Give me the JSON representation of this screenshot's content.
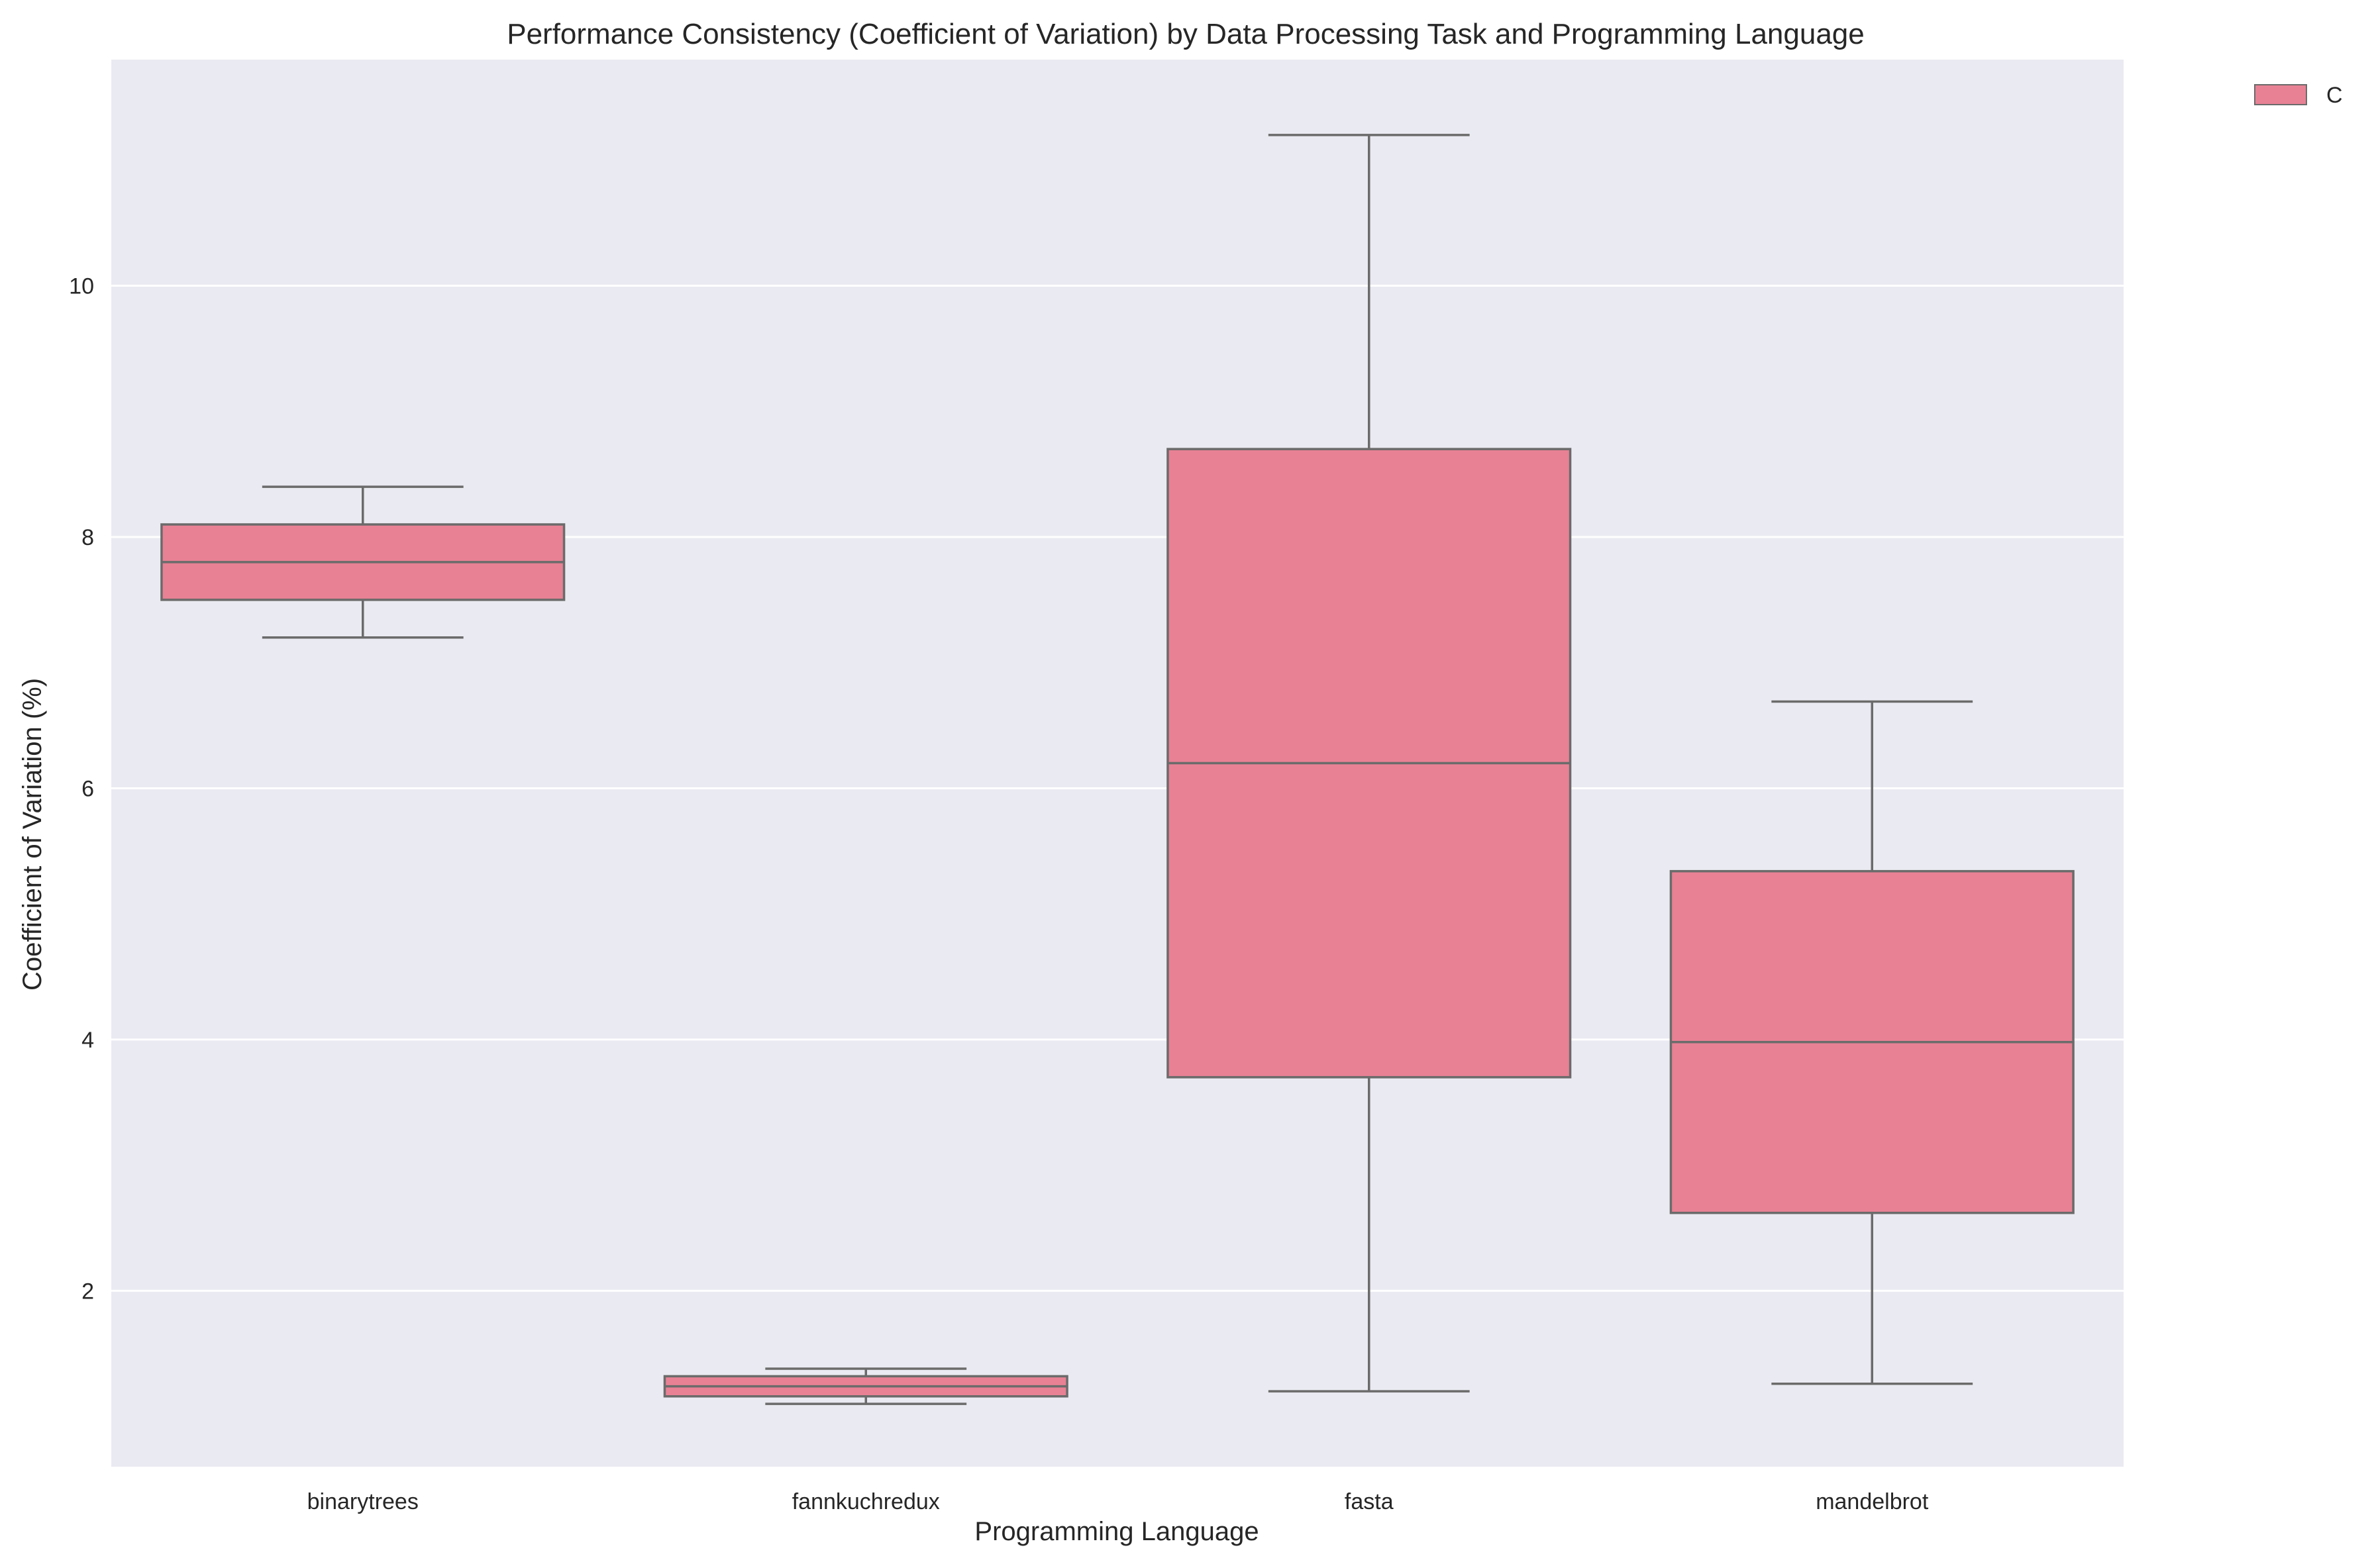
{
  "chart_data": {
    "type": "box",
    "title": "Performance Consistency (Coefficient of Variation) by Data Processing Task and Programming Language",
    "xlabel": "Programming Language",
    "ylabel": "Coefficient of Variation (%)",
    "categories": [
      "binarytrees",
      "fannkuchredux",
      "fasta",
      "mandelbrot"
    ],
    "ylim": [
      0.6,
      11.8
    ],
    "yticks": [
      2,
      4,
      6,
      8,
      10
    ],
    "grid": true,
    "legend_position": "outside-top-right",
    "series": [
      {
        "name": "C",
        "color": "#e88194",
        "boxes": [
          {
            "category": "binarytrees",
            "whisker_low": 7.2,
            "q1": 7.5,
            "median": 7.8,
            "q3": 8.1,
            "whisker_high": 8.4
          },
          {
            "category": "fannkuchredux",
            "whisker_low": 1.1,
            "q1": 1.16,
            "median": 1.24,
            "q3": 1.32,
            "whisker_high": 1.38
          },
          {
            "category": "fasta",
            "whisker_low": 1.2,
            "q1": 3.7,
            "median": 6.2,
            "q3": 8.7,
            "whisker_high": 11.2
          },
          {
            "category": "mandelbrot",
            "whisker_low": 1.26,
            "q1": 2.62,
            "median": 3.98,
            "q3": 5.34,
            "whisker_high": 6.69
          }
        ]
      }
    ],
    "colors": {
      "plot_background": "#eaeaf2",
      "grid": "#ffffff",
      "box_edge": "#6b6b6b"
    }
  }
}
